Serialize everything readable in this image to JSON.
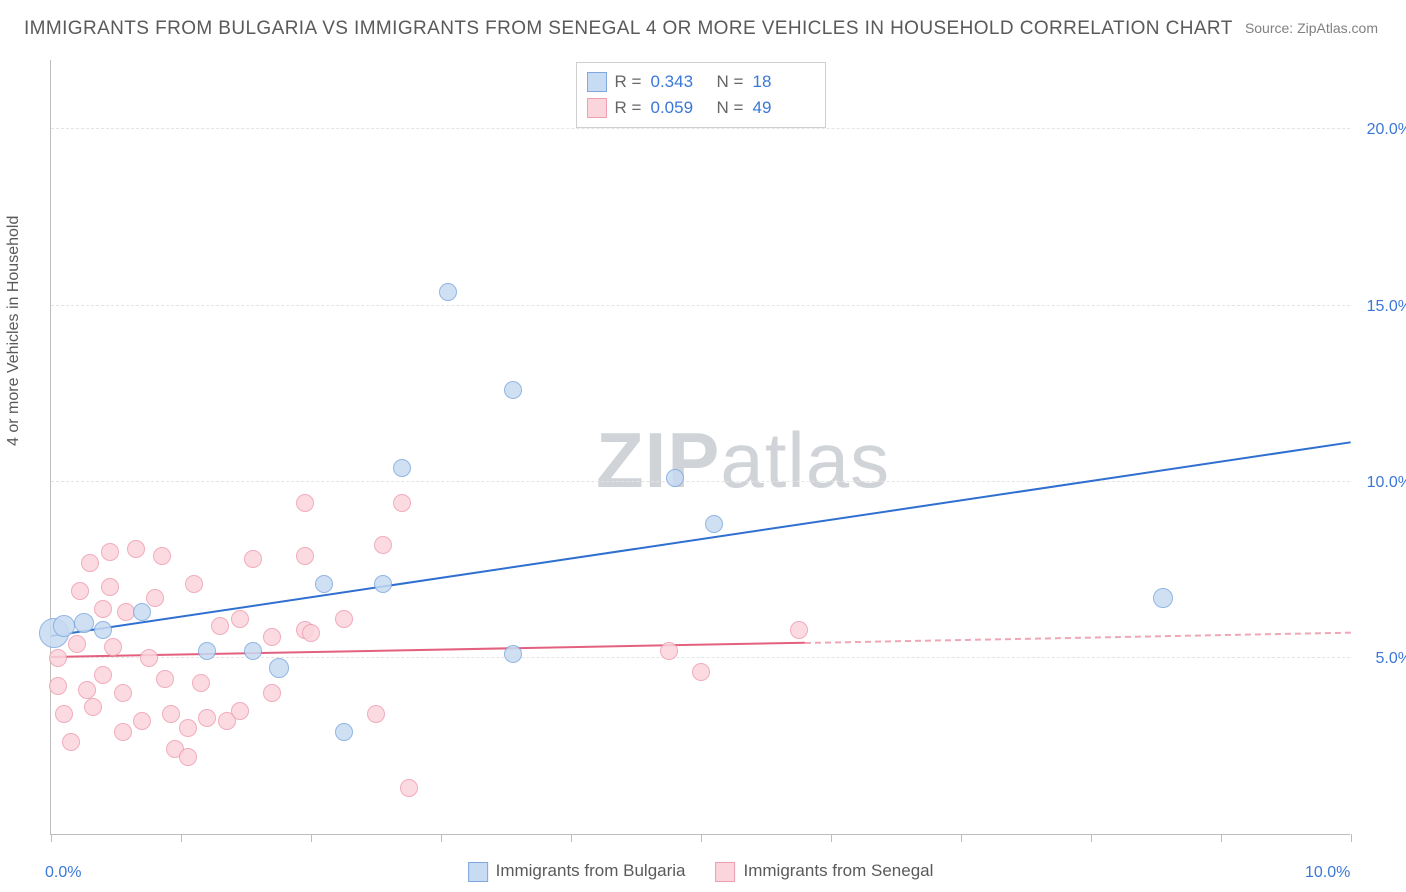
{
  "title": "IMMIGRANTS FROM BULGARIA VS IMMIGRANTS FROM SENEGAL 4 OR MORE VEHICLES IN HOUSEHOLD CORRELATION CHART",
  "source": "Source: ZipAtlas.com",
  "ylabel": "4 or more Vehicles in Household",
  "watermark_a": "ZIP",
  "watermark_b": "atlas",
  "chart": {
    "type": "scatter",
    "background_color": "#ffffff",
    "grid_color": "#e4e4e4",
    "axis_color": "#bdbdbd",
    "tick_label_color": "#3a78d8",
    "text_color": "#5a5a5a",
    "xlim": [
      0,
      10
    ],
    "ylim": [
      0,
      22
    ],
    "y_gridlines": [
      5,
      10,
      15,
      20
    ],
    "y_ticks": [
      {
        "v": 5,
        "label": "5.0%"
      },
      {
        "v": 10,
        "label": "10.0%"
      },
      {
        "v": 15,
        "label": "15.0%"
      },
      {
        "v": 20,
        "label": "20.0%"
      }
    ],
    "x_ticks": [
      {
        "v": 0,
        "label": "0.0%"
      },
      {
        "v": 1,
        "label": ""
      },
      {
        "v": 2,
        "label": ""
      },
      {
        "v": 3,
        "label": ""
      },
      {
        "v": 4,
        "label": ""
      },
      {
        "v": 5,
        "label": ""
      },
      {
        "v": 6,
        "label": ""
      },
      {
        "v": 7,
        "label": ""
      },
      {
        "v": 8,
        "label": ""
      },
      {
        "v": 9,
        "label": ""
      },
      {
        "v": 10,
        "label": "10.0%"
      }
    ],
    "series": [
      {
        "name": "Immigrants from Bulgaria",
        "marker_fill": "#c7dbf2",
        "marker_stroke": "#7fa9de",
        "line_color": "#2f6fd0",
        "marker_radius_px": 10,
        "R": "0.343",
        "N": "18",
        "trend": {
          "x1": 0,
          "y1": 5.6,
          "x2": 10,
          "y2": 11.1,
          "dash": false,
          "solid_until_x": 10
        },
        "points": [
          {
            "x": 0.02,
            "y": 5.7,
            "r": 15
          },
          {
            "x": 0.1,
            "y": 5.9,
            "r": 11
          },
          {
            "x": 0.25,
            "y": 6.0,
            "r": 10
          },
          {
            "x": 0.4,
            "y": 5.8,
            "r": 9
          },
          {
            "x": 0.7,
            "y": 6.3,
            "r": 9
          },
          {
            "x": 1.2,
            "y": 5.2,
            "r": 9
          },
          {
            "x": 1.55,
            "y": 5.2,
            "r": 9
          },
          {
            "x": 1.75,
            "y": 4.7,
            "r": 10
          },
          {
            "x": 2.1,
            "y": 7.1,
            "r": 9
          },
          {
            "x": 2.25,
            "y": 2.9,
            "r": 9
          },
          {
            "x": 2.55,
            "y": 7.1,
            "r": 9
          },
          {
            "x": 2.7,
            "y": 10.4,
            "r": 9
          },
          {
            "x": 3.05,
            "y": 15.4,
            "r": 9
          },
          {
            "x": 3.55,
            "y": 5.1,
            "r": 9
          },
          {
            "x": 3.55,
            "y": 12.6,
            "r": 9
          },
          {
            "x": 4.8,
            "y": 10.1,
            "r": 9
          },
          {
            "x": 5.1,
            "y": 8.8,
            "r": 9
          },
          {
            "x": 8.55,
            "y": 6.7,
            "r": 10
          }
        ]
      },
      {
        "name": "Immigrants from Senegal",
        "marker_fill": "#fbd5dc",
        "marker_stroke": "#ef9eb1",
        "line_color": "#e3607f",
        "marker_radius_px": 10,
        "R": "0.059",
        "N": "49",
        "trend": {
          "x1": 0,
          "y1": 5.0,
          "x2": 10,
          "y2": 5.7,
          "dash": true,
          "solid_until_x": 5.8
        },
        "points": [
          {
            "x": 0.05,
            "y": 5.0,
            "r": 9
          },
          {
            "x": 0.05,
            "y": 4.2,
            "r": 9
          },
          {
            "x": 0.1,
            "y": 3.4,
            "r": 9
          },
          {
            "x": 0.15,
            "y": 2.6,
            "r": 9
          },
          {
            "x": 0.2,
            "y": 5.4,
            "r": 9
          },
          {
            "x": 0.22,
            "y": 6.9,
            "r": 9
          },
          {
            "x": 0.28,
            "y": 4.1,
            "r": 9
          },
          {
            "x": 0.3,
            "y": 7.7,
            "r": 9
          },
          {
            "x": 0.32,
            "y": 3.6,
            "r": 9
          },
          {
            "x": 0.4,
            "y": 6.4,
            "r": 9
          },
          {
            "x": 0.4,
            "y": 4.5,
            "r": 9
          },
          {
            "x": 0.45,
            "y": 8.0,
            "r": 9
          },
          {
            "x": 0.45,
            "y": 7.0,
            "r": 9
          },
          {
            "x": 0.48,
            "y": 5.3,
            "r": 9
          },
          {
            "x": 0.55,
            "y": 4.0,
            "r": 9
          },
          {
            "x": 0.55,
            "y": 2.9,
            "r": 9
          },
          {
            "x": 0.58,
            "y": 6.3,
            "r": 9
          },
          {
            "x": 0.65,
            "y": 8.1,
            "r": 9
          },
          {
            "x": 0.7,
            "y": 3.2,
            "r": 9
          },
          {
            "x": 0.75,
            "y": 5.0,
            "r": 9
          },
          {
            "x": 0.8,
            "y": 6.7,
            "r": 9
          },
          {
            "x": 0.85,
            "y": 7.9,
            "r": 9
          },
          {
            "x": 0.88,
            "y": 4.4,
            "r": 9
          },
          {
            "x": 0.92,
            "y": 3.4,
            "r": 9
          },
          {
            "x": 0.95,
            "y": 2.4,
            "r": 9
          },
          {
            "x": 1.05,
            "y": 3.0,
            "r": 9
          },
          {
            "x": 1.05,
            "y": 2.2,
            "r": 9
          },
          {
            "x": 1.1,
            "y": 7.1,
            "r": 9
          },
          {
            "x": 1.15,
            "y": 4.3,
            "r": 9
          },
          {
            "x": 1.2,
            "y": 3.3,
            "r": 9
          },
          {
            "x": 1.3,
            "y": 5.9,
            "r": 9
          },
          {
            "x": 1.35,
            "y": 3.2,
            "r": 9
          },
          {
            "x": 1.45,
            "y": 6.1,
            "r": 9
          },
          {
            "x": 1.45,
            "y": 3.5,
            "r": 9
          },
          {
            "x": 1.55,
            "y": 7.8,
            "r": 9
          },
          {
            "x": 1.7,
            "y": 5.6,
            "r": 9
          },
          {
            "x": 1.7,
            "y": 4.0,
            "r": 9
          },
          {
            "x": 1.95,
            "y": 9.4,
            "r": 9
          },
          {
            "x": 1.95,
            "y": 7.9,
            "r": 9
          },
          {
            "x": 1.95,
            "y": 5.8,
            "r": 9
          },
          {
            "x": 2.0,
            "y": 5.7,
            "r": 9
          },
          {
            "x": 2.25,
            "y": 6.1,
            "r": 9
          },
          {
            "x": 2.5,
            "y": 3.4,
            "r": 9
          },
          {
            "x": 2.55,
            "y": 8.2,
            "r": 9
          },
          {
            "x": 2.7,
            "y": 9.4,
            "r": 9
          },
          {
            "x": 2.75,
            "y": 1.3,
            "r": 9
          },
          {
            "x": 4.75,
            "y": 5.2,
            "r": 9
          },
          {
            "x": 5.0,
            "y": 4.6,
            "r": 9
          },
          {
            "x": 5.75,
            "y": 5.8,
            "r": 9
          }
        ]
      }
    ]
  },
  "legend_top": {
    "label_R": "R =",
    "label_N": "N ="
  },
  "legend_bottom": {}
}
